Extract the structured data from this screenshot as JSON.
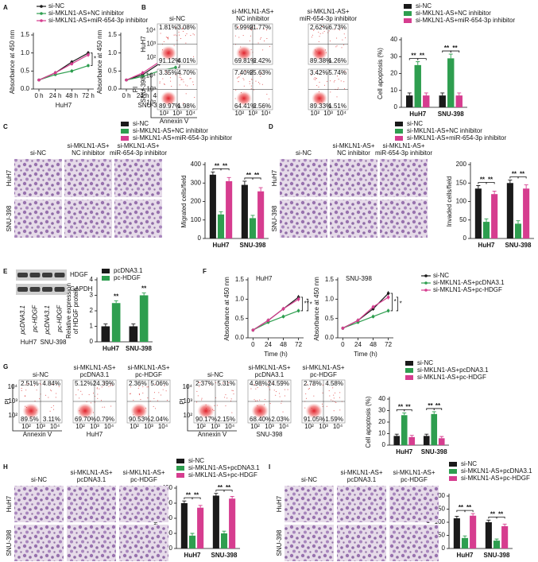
{
  "panel_letters": [
    "A",
    "B",
    "C",
    "D",
    "E",
    "F",
    "G",
    "H",
    "I"
  ],
  "chart_data": [
    {
      "type": "line",
      "categories": [
        "0 h",
        "24 h",
        "48 h",
        "72 h"
      ],
      "xlabel": "HuH7",
      "ylabel": "Absorbance at 450 nm",
      "ylim": [
        0,
        1.5
      ],
      "yticks": [
        {
          "value": 0,
          "label": "0.0"
        },
        0.5,
        {
          "value": 1,
          "label": "1.0"
        },
        1.5
      ],
      "series": [
        {
          "name": "si-NC",
          "color": "#1a1a1a",
          "values": [
            0.25,
            0.45,
            0.75,
            1.0
          ],
          "errors": [
            0.04,
            0.05,
            0.05,
            0.06
          ]
        },
        {
          "name": "si-MKLN1-AS+NC inhibitor",
          "color": "#2e9e4f",
          "values": [
            0.25,
            0.4,
            0.5,
            0.65
          ],
          "errors": [
            0.04,
            0.04,
            0.05,
            0.05
          ]
        },
        {
          "name": "si-MKLN1-AS+miR-654-3p inhibitor",
          "color": "#d63d8f",
          "values": [
            0.25,
            0.45,
            0.7,
            0.95
          ],
          "errors": [
            0.04,
            0.05,
            0.05,
            0.06
          ]
        }
      ],
      "annotations": [
        "*"
      ]
    },
    {
      "type": "line",
      "categories": [
        "0 h",
        "24 h",
        "48 h",
        "72 h"
      ],
      "xlabel": "SNU-398",
      "ylabel": "Absorbance at 450 nm",
      "ylim": [
        0,
        1.5
      ],
      "yticks": [
        {
          "value": 0,
          "label": "0.0"
        },
        0.5,
        {
          "value": 1,
          "label": "1.0"
        },
        1.5
      ],
      "series": [
        {
          "color": "#1a1a1a",
          "values": [
            0.25,
            0.4,
            0.7,
            1.05
          ],
          "errors": [
            0.04,
            0.05,
            0.05,
            0.06
          ]
        },
        {
          "color": "#2e9e4f",
          "values": [
            0.25,
            0.35,
            0.5,
            0.6
          ],
          "errors": [
            0.04,
            0.04,
            0.05,
            0.05
          ]
        },
        {
          "color": "#d63d8f",
          "values": [
            0.25,
            0.45,
            0.75,
            1.1
          ],
          "errors": [
            0.04,
            0.05,
            0.05,
            0.06
          ]
        }
      ],
      "annotations": [
        "**"
      ]
    },
    {
      "type": "bar",
      "categories": [
        "HuH7",
        "SNU-398"
      ],
      "ylabel": "Cell apoptosis (%)",
      "ylim": [
        0,
        40
      ],
      "yticks": [
        0,
        10,
        20,
        30,
        40
      ],
      "series": [
        {
          "name": "si-NC",
          "color": "#1a1a1a",
          "values": [
            7,
            7
          ],
          "errors": [
            1.5,
            1.5
          ]
        },
        {
          "name": "si-MKLN1-AS+NC inhibitor",
          "color": "#2e9e4f",
          "values": [
            25,
            29
          ],
          "errors": [
            2,
            2.5
          ]
        },
        {
          "name": "si-MKLN1-AS+miR-654-3p inhibitor",
          "color": "#d63d8f",
          "values": [
            7,
            7
          ],
          "errors": [
            1.5,
            1.5
          ]
        }
      ],
      "annotations": [
        "**",
        "**",
        "**",
        "**"
      ]
    },
    {
      "type": "bar",
      "categories": [
        "HuH7",
        "SNU-398"
      ],
      "ylabel": "Migrated cells/field",
      "ylim": [
        0,
        400
      ],
      "yticks": [
        0,
        100,
        200,
        300,
        400
      ],
      "series": [
        {
          "name": "si-NC",
          "color": "#1a1a1a",
          "values": [
            345,
            290
          ],
          "errors": [
            15,
            20
          ]
        },
        {
          "name": "si-MKLN1-AS+NC inhibitor",
          "color": "#2e9e4f",
          "values": [
            130,
            110
          ],
          "errors": [
            15,
            15
          ]
        },
        {
          "name": "si-MKLN1-AS+miR-654-3p inhibitor",
          "color": "#d63d8f",
          "values": [
            310,
            255
          ],
          "errors": [
            20,
            20
          ]
        }
      ],
      "annotations": [
        "**",
        "**",
        "**",
        "**"
      ]
    },
    {
      "type": "bar",
      "categories": [
        "HuH7",
        "SNU-398"
      ],
      "ylabel": "Invaded cells/field",
      "ylim": [
        0,
        200
      ],
      "yticks": [
        0,
        50,
        100,
        150,
        200
      ],
      "series": [
        {
          "name": "si-NC",
          "color": "#1a1a1a",
          "values": [
            135,
            150
          ],
          "errors": [
            8,
            8
          ]
        },
        {
          "name": "si-MKLN1-AS+NC inhibitor",
          "color": "#2e9e4f",
          "values": [
            45,
            40
          ],
          "errors": [
            8,
            8
          ]
        },
        {
          "name": "si-MKLN1-AS+miR-654-3p inhibitor",
          "color": "#d63d8f",
          "values": [
            120,
            135
          ],
          "errors": [
            8,
            10
          ]
        }
      ],
      "annotations": [
        "**",
        "**",
        "**",
        "**"
      ]
    },
    {
      "type": "bar",
      "categories": [
        "HuH7",
        "SNU-398"
      ],
      "ylabel": [
        "Relative expression",
        "of HDGF protein"
      ],
      "ylim": [
        0,
        4
      ],
      "yticks": [
        0,
        1,
        2,
        3,
        4
      ],
      "series": [
        {
          "name": "pcDNA3.1",
          "color": "#1a1a1a",
          "values": [
            1.0,
            1.0
          ],
          "errors": [
            0.15,
            0.15
          ]
        },
        {
          "name": "pc-HDGF",
          "color": "#2e9e4f",
          "values": [
            2.5,
            3.0
          ],
          "errors": [
            0.15,
            0.15
          ]
        }
      ],
      "annotations": [
        "**",
        "**"
      ]
    },
    {
      "type": "line",
      "title": "HuH7",
      "x": [
        0,
        24,
        48,
        72
      ],
      "xlim": [
        -8,
        80
      ],
      "xticks": [
        0,
        24,
        48,
        72
      ],
      "xlabel": "Time (h)",
      "ylabel": "Absorbance at 450 nm",
      "ylim": [
        0,
        1.5
      ],
      "yticks": [
        {
          "value": 0,
          "label": "0.0"
        },
        0.5,
        {
          "value": 1,
          "label": "1.0"
        },
        1.5
      ],
      "series": [
        {
          "name": "si-NC",
          "color": "#1a1a1a",
          "values": [
            0.2,
            0.45,
            0.75,
            1.05
          ],
          "errors": [
            0.04,
            0.05,
            0.05,
            0.06
          ]
        },
        {
          "name": "si-MKLN1-AS+pcDNA3.1",
          "color": "#2e9e4f",
          "values": [
            0.2,
            0.4,
            0.55,
            0.7
          ],
          "errors": [
            0.04,
            0.04,
            0.05,
            0.05
          ]
        },
        {
          "name": "si-MKLN1-AS+pc-HDGF",
          "color": "#d63d8f",
          "values": [
            0.2,
            0.45,
            0.75,
            1.0
          ],
          "errors": [
            0.04,
            0.05,
            0.05,
            0.06
          ]
        }
      ],
      "annotations": [
        "**",
        "*"
      ]
    },
    {
      "type": "line",
      "title": "SNU-398",
      "x": [
        0,
        24,
        48,
        72
      ],
      "xlim": [
        -8,
        80
      ],
      "xticks": [
        0,
        24,
        48,
        72
      ],
      "xlabel": "Time (h)",
      "ylabel": "Absorbance at 450 nm",
      "ylim": [
        0,
        1.5
      ],
      "yticks": [
        {
          "value": 0,
          "label": "0.0"
        },
        0.5,
        {
          "value": 1,
          "label": "1.0"
        },
        1.5
      ],
      "series": [
        {
          "color": "#1a1a1a",
          "values": [
            0.25,
            0.45,
            0.75,
            1.15
          ],
          "errors": [
            0.04,
            0.05,
            0.05,
            0.06
          ]
        },
        {
          "color": "#2e9e4f",
          "values": [
            0.25,
            0.4,
            0.55,
            0.7
          ],
          "errors": [
            0.04,
            0.04,
            0.05,
            0.05
          ]
        },
        {
          "color": "#d63d8f",
          "values": [
            0.25,
            0.45,
            0.8,
            1.05
          ],
          "errors": [
            0.04,
            0.05,
            0.05,
            0.06
          ]
        }
      ],
      "annotations": [
        "*",
        "*"
      ]
    },
    {
      "type": "bar",
      "categories": [
        "HuH7",
        "SNU-398"
      ],
      "ylabel": "Cell apoptosis (%)",
      "ylim": [
        0,
        40
      ],
      "yticks": [
        0,
        10,
        20,
        30,
        40
      ],
      "series": [
        {
          "name": "si-NC",
          "color": "#1a1a1a",
          "values": [
            8,
            8
          ],
          "errors": [
            1.5,
            1.5
          ]
        },
        {
          "name": "si-MKLN1-AS+pcDNA3.1",
          "color": "#2e9e4f",
          "values": [
            26,
            27
          ],
          "errors": [
            2,
            2
          ]
        },
        {
          "name": "si-MKLN1-AS+pc-HDGF",
          "color": "#d63d8f",
          "values": [
            7,
            6
          ],
          "errors": [
            1.5,
            1.5
          ]
        }
      ],
      "annotations": [
        "**",
        "**",
        "**",
        "**"
      ]
    },
    {
      "type": "bar",
      "categories": [
        "HuH7",
        "SNU-398"
      ],
      "ylabel": "Migrated cells/field",
      "ylim": [
        0,
        400
      ],
      "yticks": [
        0,
        100,
        200,
        300,
        400
      ],
      "series": [
        {
          "name": "si-NC",
          "color": "#1a1a1a",
          "values": [
            300,
            350
          ],
          "errors": [
            15,
            15
          ]
        },
        {
          "name": "si-MKLN1-AS+pcDNA3.1",
          "color": "#2e9e4f",
          "values": [
            85,
            100
          ],
          "errors": [
            15,
            15
          ]
        },
        {
          "name": "si-MKLN1-AS+pc-HDGF",
          "color": "#d63d8f",
          "values": [
            270,
            330
          ],
          "errors": [
            15,
            15
          ]
        }
      ],
      "annotations": [
        "**",
        "**",
        "**",
        "**"
      ]
    },
    {
      "type": "bar",
      "categories": [
        "HuH7",
        "SNU-398"
      ],
      "ylabel": "Invaded cells/field",
      "ylim": [
        0,
        200
      ],
      "yticks": [
        0,
        50,
        100,
        150,
        200
      ],
      "series": [
        {
          "name": "si-NC",
          "color": "#1a1a1a",
          "values": [
            115,
            100
          ],
          "errors": [
            8,
            8
          ]
        },
        {
          "name": "si-MKLN1-AS+pcDNA3.1",
          "color": "#2e9e4f",
          "values": [
            40,
            30
          ],
          "errors": [
            8,
            6
          ]
        },
        {
          "name": "si-MKLN1-AS+pc-HDGF",
          "color": "#d63d8f",
          "values": [
            125,
            85
          ],
          "errors": [
            8,
            8
          ]
        }
      ],
      "annotations": [
        "**",
        "**",
        "**",
        "**"
      ]
    }
  ],
  "flow_panels": [
    {
      "column_labels": [
        [
          "si-NC"
        ],
        [
          "si-MKLN1-AS+",
          "NC inhibitor"
        ],
        [
          "si-MKLN1-AS+",
          "miR-654-3p inhibitor"
        ]
      ],
      "row_labels": [
        "HuH7",
        "SNU-398"
      ],
      "y_axis_label": "PI",
      "x_axis_label": "Annexin V",
      "axis_ticks": [
        "10²",
        "10³",
        "10⁴"
      ],
      "plots": [
        [
          [
            "1.81%",
            "3.08%",
            "91.12%",
            "4.01%"
          ],
          [
            "5.99%",
            "21.77%",
            "69.81%",
            "2.42%"
          ],
          [
            "2.62%",
            "6.73%",
            "89.38%",
            "1.26%"
          ]
        ],
        [
          [
            "3.35%",
            "4.70%",
            "89.97%",
            "1.98%"
          ],
          [
            "7.40%",
            "25.63%",
            "64.41%",
            "2.56%"
          ],
          [
            "3.42%",
            "5.74%",
            "89.33%",
            "1.51%"
          ]
        ]
      ]
    },
    {
      "column_labels": [
        [
          "si-NC"
        ],
        [
          "si-MKLN1-AS+",
          "pcDNA3.1"
        ],
        [
          "si-MKLN1-AS+",
          "pc-HDGF"
        ]
      ],
      "group_label": "HuH7",
      "y_axis_label": "PI",
      "x_axis_label": "Annexin V",
      "axis_ticks": [
        "10²",
        "10³",
        "10⁴"
      ],
      "plots": [
        [
          [
            "2.51%",
            "4.84%",
            "89.5%",
            "3.11%"
          ],
          [
            "5.12%",
            "24.39%",
            "69.70%",
            "0.79%"
          ],
          [
            "2.36%",
            "5.06%",
            "90.53%",
            "2.04%"
          ]
        ]
      ]
    },
    {
      "column_labels": [
        [
          "si-NC"
        ],
        [
          "si-MKLN1-AS+",
          "pcDNA3.1"
        ],
        [
          "si-MKLN1-AS+",
          "pc-HDGF"
        ]
      ],
      "group_label": "SNU-398",
      "y_axis_label": "PI",
      "x_axis_label": "Annexin V",
      "axis_ticks": [
        "10²",
        "10³",
        "10⁴"
      ],
      "plots": [
        [
          [
            "2.37%",
            "5.31%",
            "90.17%",
            "2.15%"
          ],
          [
            "4.98%",
            "24.59%",
            "68.40%",
            "2.03%"
          ],
          [
            "2.78%",
            "4.58%",
            "91.05%",
            "1.59%"
          ]
        ]
      ]
    }
  ],
  "image_panels": [
    {
      "column_labels": [
        [
          "si-NC"
        ],
        [
          "si-MKLN1-AS+",
          "NC inhibitor"
        ],
        [
          "si-MKLN1-AS+",
          "miR-654-3p inhibitor"
        ]
      ],
      "row_labels": [
        "HuH7",
        "SNU-398"
      ]
    },
    {
      "column_labels": [
        [
          "si-NC"
        ],
        [
          "si-MKLN1-AS+",
          "NC inhibitor"
        ],
        [
          "si-MKLN1-AS+",
          "miR-654-3p inhibitor"
        ]
      ],
      "row_labels": [
        "HuH7",
        "SNU-398"
      ]
    },
    {
      "column_labels": [
        [
          "si-NC"
        ],
        [
          "si-MKLN1-AS+",
          "pcDNA3.1"
        ],
        [
          "si-MKLN1-AS+",
          "pc-HDGF"
        ]
      ],
      "row_labels": [
        "HuH7",
        "SNU-398"
      ]
    },
    {
      "column_labels": [
        [
          "si-NC"
        ],
        [
          "si-MKLN1-AS+",
          "pcDNA3.1"
        ],
        [
          "si-MKLN1-AS+",
          "pc-HDGF"
        ]
      ],
      "row_labels": [
        "HuH7",
        "SNU-398"
      ]
    }
  ],
  "blot": {
    "bands": [
      "HDGF",
      "GAPDH"
    ],
    "lanes": [
      "pcDNA3.1",
      "pc-HDGF",
      "pcDNA3.1",
      "pc-HDGF"
    ],
    "groups": [
      "HuH7",
      "SNU-398"
    ]
  }
}
